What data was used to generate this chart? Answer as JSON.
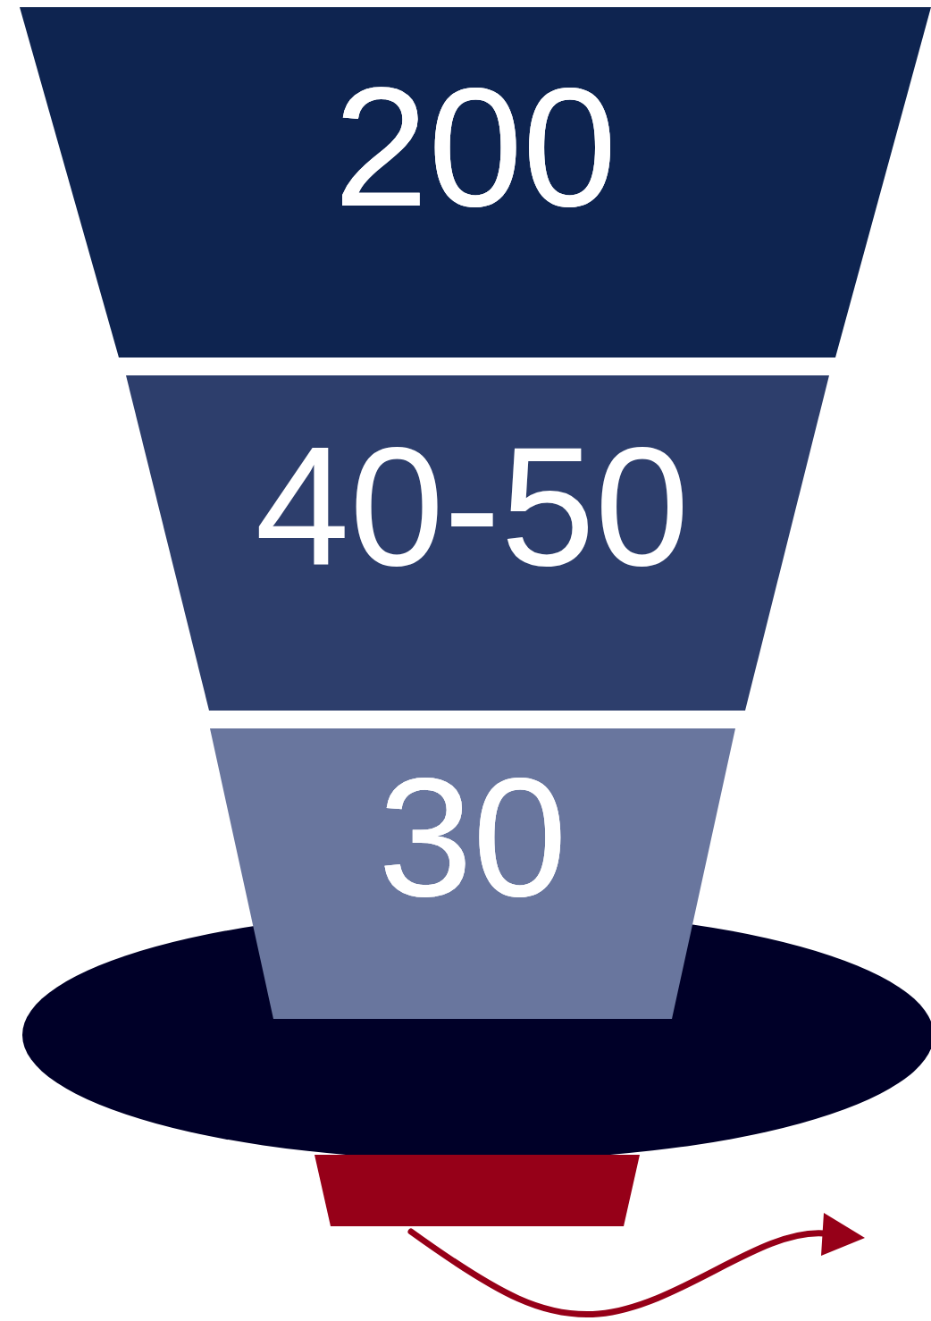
{
  "chart_data": {
    "type": "other",
    "categories": [
      null,
      null,
      null
    ],
    "values": [
      200,
      null,
      30
    ],
    "value_labels": [
      "200",
      "40-50",
      "30"
    ],
    "colors": [
      "#0e2450",
      "#2d3e6c",
      "#69769e"
    ]
  }
}
